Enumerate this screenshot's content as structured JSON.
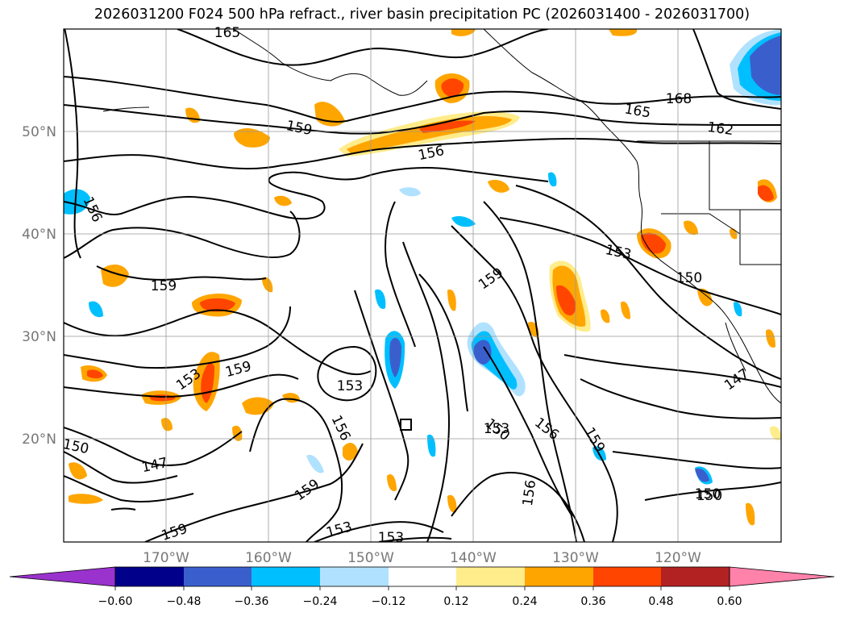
{
  "title": "2026031200 F024 500 hPa refract., river basin precipitation PC (2026031400 - 2026031700)",
  "map": {
    "lon_labels": [
      "170°W",
      "160°W",
      "150°W",
      "140°W",
      "130°W",
      "120°W"
    ],
    "lat_labels": [
      "50°N",
      "40°N",
      "30°N",
      "20°N"
    ],
    "contour_labels": [
      "165",
      "168",
      "165",
      "162",
      "159",
      "156",
      "156",
      "159",
      "153",
      "150",
      "159",
      "159",
      "153",
      "153",
      "159",
      "156",
      "150",
      "147",
      "150",
      "147",
      "150",
      "156",
      "159",
      "159",
      "153",
      "156",
      "153",
      "153",
      "150"
    ]
  },
  "colorbar": {
    "ticks": [
      "−0.60",
      "−0.48",
      "−0.36",
      "−0.24",
      "−0.12",
      "0.12",
      "0.24",
      "0.36",
      "0.48",
      "0.60"
    ],
    "colors": [
      "#9a32cd",
      "#00008b",
      "#3a5fcd",
      "#00bfff",
      "#b0e2ff",
      "#ffffff",
      "#ffec8b",
      "#ffa500",
      "#ff4500",
      "#b22222",
      "#ff82ab"
    ]
  }
}
